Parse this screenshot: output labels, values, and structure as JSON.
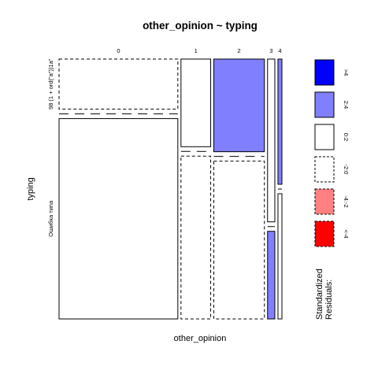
{
  "chart_data": {
    "type": "mosaic",
    "title": "other_opinion ~ typing",
    "xlabel": "other_opinion",
    "ylabel": "typing",
    "x_categories": [
      "0",
      "1",
      "2",
      "3",
      "4"
    ],
    "y_categories": [
      "98 (1 + ord(\"a\"))1a\"",
      "Ошибка типа"
    ],
    "x_shares": [
      0.54,
      0.135,
      0.23,
      0.033,
      0.018
    ],
    "cells": [
      {
        "x": "0",
        "y": "98 (1 + ord(\"a\"))1a\"",
        "share": 0.2,
        "residual": -1.0
      },
      {
        "x": "0",
        "y": "Ошибка типа",
        "share": 0.8,
        "residual": 1.0
      },
      {
        "x": "1",
        "y": "98 (1 + ord(\"a\"))1a\"",
        "share": 0.35,
        "residual": 1.0
      },
      {
        "x": "1",
        "y": "Ошибка типа",
        "share": 0.65,
        "residual": -1.0
      },
      {
        "x": "2",
        "y": "98 (1 + ord(\"a\"))1a\"",
        "share": 0.37,
        "residual": 3.0
      },
      {
        "x": "2",
        "y": "Ошибка типа",
        "share": 0.63,
        "residual": -1.0
      },
      {
        "x": "3",
        "y": "98 (1 + ord(\"a\"))1a\"",
        "share": 0.65,
        "residual": 1.0
      },
      {
        "x": "3",
        "y": "Ошибка типа",
        "share": 0.35,
        "residual": 3.0
      },
      {
        "x": "4",
        "y": "98 (1 + ord(\"a\"))1a\"",
        "share": 0.5,
        "residual": 3.0
      },
      {
        "x": "4",
        "y": "Ошибка типа",
        "share": 0.5,
        "residual": 0.0
      }
    ],
    "legend": {
      "title_lines": [
        "Standardized",
        "Residuals:"
      ],
      "placement": "right",
      "entries": [
        {
          "label": ">4",
          "color": "#0000ff",
          "dashed": false
        },
        {
          "label": "2:4",
          "color": "#8080ff",
          "dashed": false
        },
        {
          "label": "0:2",
          "color": "#ffffff",
          "dashed": false
        },
        {
          "label": "-2:0",
          "color": "#ffffff",
          "dashed": true
        },
        {
          "label": "-4:-2",
          "color": "#ff8080",
          "dashed": true
        },
        {
          "label": "<-4",
          "color": "#ff0000",
          "dashed": true
        }
      ]
    }
  }
}
